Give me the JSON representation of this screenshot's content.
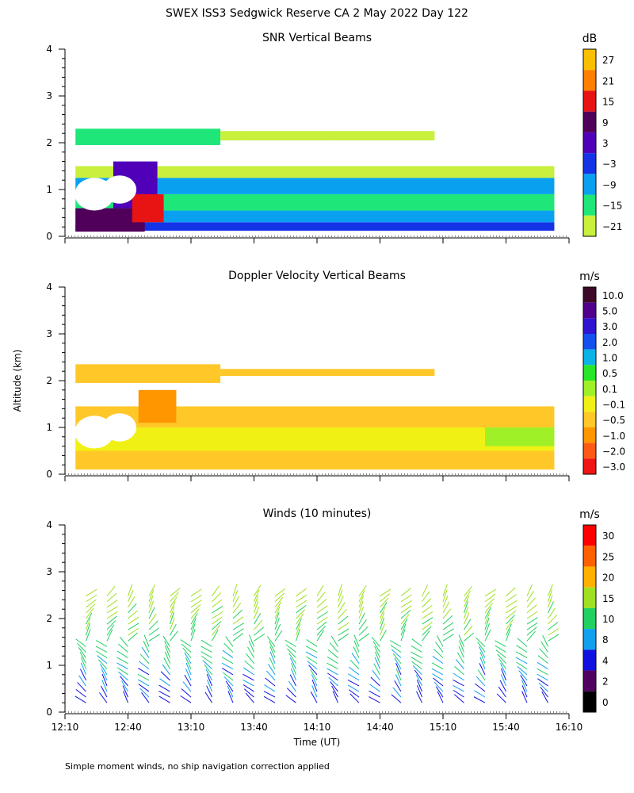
{
  "title": "SWEX ISS3 Sedgwick Reserve CA   2 May 2022 Day 122",
  "footnote": "Simple moment winds, no ship navigation correction applied",
  "chart_data": [
    {
      "type": "heatmap",
      "title": "SNR Vertical Beams",
      "ylabel": "",
      "ylim": [
        0,
        4
      ],
      "yticks": [
        "0",
        "1",
        "2",
        "3",
        "4"
      ],
      "colorbar": {
        "unit": "dB",
        "labels": [
          "27",
          "21",
          "15",
          "9",
          "3",
          "−3",
          "−9",
          "−15",
          "−21"
        ],
        "colors": [
          "#f8c000",
          "#ff8000",
          "#e81414",
          "#50005a",
          "#5000b8",
          "#1432e6",
          "#0aa0f0",
          "#1ee678",
          "#c8f03c"
        ]
      },
      "bands": [
        {
          "t0": 12.25,
          "t1": 16.05,
          "h0": 0.12,
          "h1": 0.3,
          "color": "#1432e6"
        },
        {
          "t0": 12.25,
          "t1": 16.05,
          "h0": 0.3,
          "h1": 0.55,
          "color": "#0aa0f0"
        },
        {
          "t0": 12.25,
          "t1": 16.05,
          "h0": 0.55,
          "h1": 0.9,
          "color": "#1ee678"
        },
        {
          "t0": 12.25,
          "t1": 16.05,
          "h0": 0.9,
          "h1": 1.25,
          "color": "#0aa0f0"
        },
        {
          "t0": 12.25,
          "t1": 16.05,
          "h0": 1.25,
          "h1": 1.5,
          "color": "#c8f03c"
        },
        {
          "t0": 12.25,
          "t1": 13.4,
          "h0": 1.95,
          "h1": 2.3,
          "color": "#1ee678"
        },
        {
          "t0": 13.4,
          "t1": 15.1,
          "h0": 2.05,
          "h1": 2.25,
          "color": "#c8f03c"
        },
        {
          "t0": 12.25,
          "t1": 12.8,
          "h0": 0.1,
          "h1": 0.6,
          "color": "#50005a"
        },
        {
          "t0": 12.55,
          "t1": 12.9,
          "h0": 0.6,
          "h1": 1.6,
          "color": "#5000b8"
        },
        {
          "t0": 12.7,
          "t1": 12.95,
          "h0": 0.3,
          "h1": 0.9,
          "color": "#e81414"
        }
      ],
      "gaps": [
        {
          "t": 12.4,
          "h": 0.9,
          "r": 0.35
        },
        {
          "t": 12.6,
          "h": 1.0,
          "r": 0.3
        },
        {
          "t": 13.6,
          "h": 1.85,
          "r": 0.2
        },
        {
          "t": 13.9,
          "h": 1.8,
          "r": 0.2
        },
        {
          "t": 14.3,
          "h": 1.85,
          "r": 0.2
        }
      ]
    },
    {
      "type": "heatmap",
      "title": "Doppler Velocity Vertical Beams",
      "ylabel": "Altitude (km)",
      "ylim": [
        0,
        4
      ],
      "yticks": [
        "0",
        "1",
        "2",
        "3",
        "4"
      ],
      "colorbar": {
        "unit": "m/s",
        "labels": [
          "10.0",
          "5.0",
          "3.0",
          "2.0",
          "1.0",
          "0.5",
          "0.1",
          "−0.1",
          "−0.5",
          "−1.0",
          "−2.0",
          "−3.0"
        ],
        "colors": [
          "#3c0a28",
          "#50008c",
          "#3014d2",
          "#1450f0",
          "#0ab4e6",
          "#28e628",
          "#a0f028",
          "#f0f014",
          "#ffc828",
          "#ff9600",
          "#ff5a14",
          "#f01414"
        ]
      },
      "bands": [
        {
          "t0": 12.25,
          "t1": 16.05,
          "h0": 0.1,
          "h1": 0.5,
          "color": "#ffc828"
        },
        {
          "t0": 12.25,
          "t1": 16.05,
          "h0": 0.5,
          "h1": 1.0,
          "color": "#f0f014"
        },
        {
          "t0": 12.25,
          "t1": 16.05,
          "h0": 1.0,
          "h1": 1.45,
          "color": "#ffc828"
        },
        {
          "t0": 12.25,
          "t1": 13.4,
          "h0": 1.95,
          "h1": 2.35,
          "color": "#ffc828"
        },
        {
          "t0": 13.4,
          "t1": 15.1,
          "h0": 2.1,
          "h1": 2.25,
          "color": "#ffc828"
        },
        {
          "t0": 12.75,
          "t1": 13.05,
          "h0": 1.1,
          "h1": 1.8,
          "color": "#ff9600"
        },
        {
          "t0": 15.5,
          "t1": 16.05,
          "h0": 0.6,
          "h1": 1.0,
          "color": "#a0f028"
        }
      ],
      "gaps": [
        {
          "t": 12.4,
          "h": 0.9,
          "r": 0.35
        },
        {
          "t": 12.6,
          "h": 1.0,
          "r": 0.3
        },
        {
          "t": 13.6,
          "h": 1.85,
          "r": 0.2
        },
        {
          "t": 13.9,
          "h": 1.8,
          "r": 0.2
        }
      ]
    },
    {
      "type": "wind-barbs",
      "title": "Winds (10 minutes)",
      "xlabel": "Time (UT)",
      "ylim": [
        0,
        4
      ],
      "yticks": [
        "0",
        "1",
        "2",
        "3",
        "4"
      ],
      "xlim": [
        12.1667,
        16.1667
      ],
      "xticks": [
        "12:10",
        "12:40",
        "13:10",
        "13:40",
        "14:10",
        "14:40",
        "15:10",
        "15:40",
        "16:10"
      ],
      "interval_minutes": 10,
      "colorbar": {
        "unit": "m/s",
        "labels": [
          "30",
          "25",
          "20",
          "15",
          "10",
          "8",
          "4",
          "2",
          "0"
        ],
        "colors": [
          "#ff0000",
          "#ff6000",
          "#ffb000",
          "#a0e020",
          "#20d060",
          "#10a0f0",
          "#1010e0",
          "#500060",
          "#000000"
        ]
      }
    }
  ]
}
